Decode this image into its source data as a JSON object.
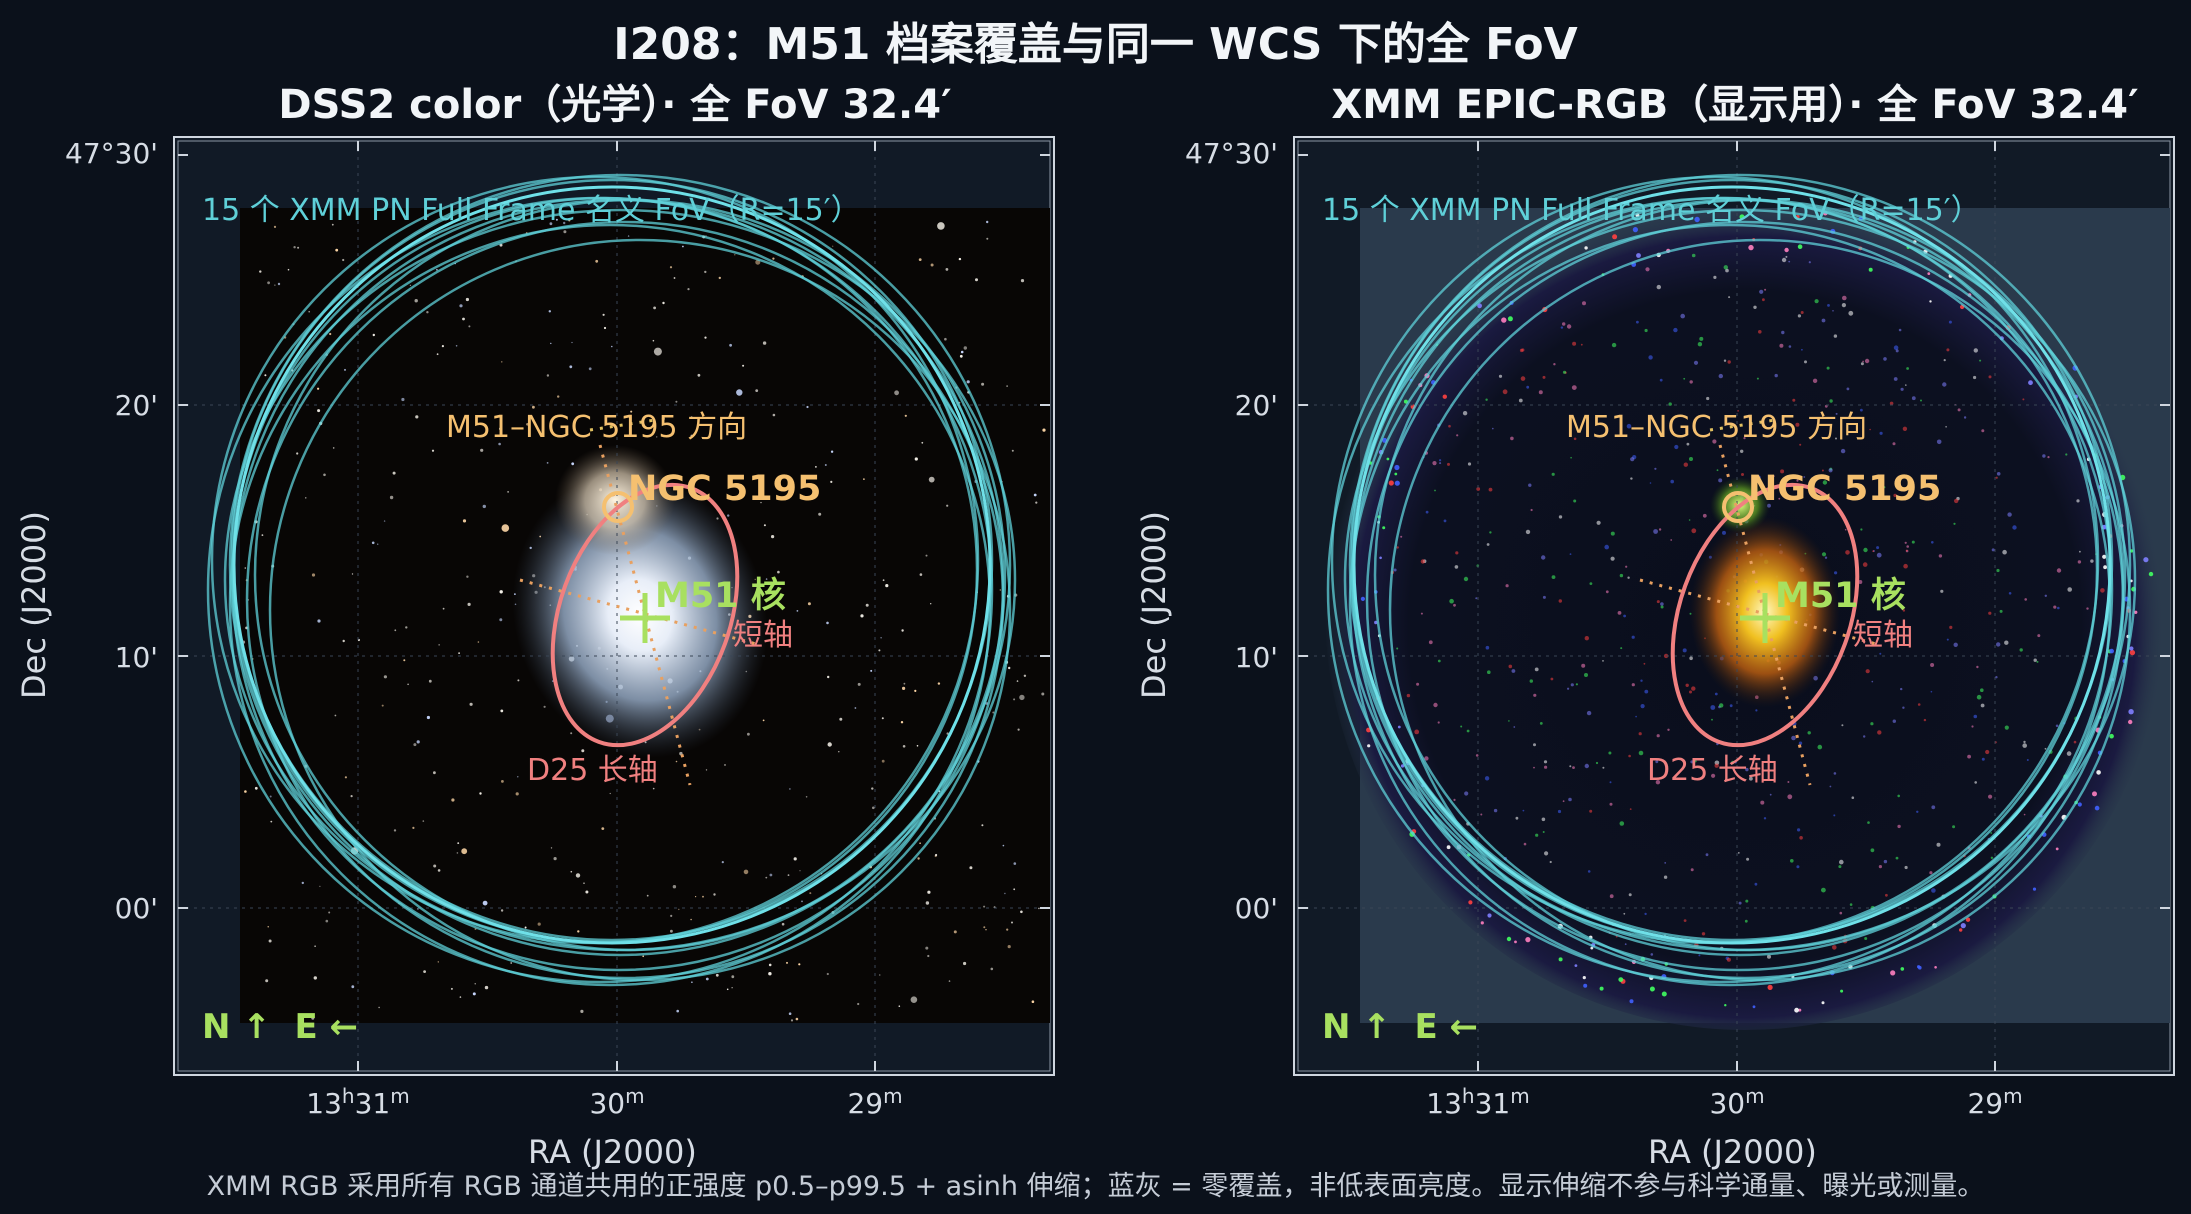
{
  "title": "I208：M51 档案覆盖与同一 WCS 下的全 FoV",
  "footer": "XMM RGB 采用所有 RGB 通道共用的正强度 p0.5–p99.5 + asinh 伸缩；蓝灰 = 零覆盖，非低表面亮度。显示伸缩不参与科学通量、曝光或测量。",
  "axes": {
    "ylabel": "Dec (J2000)",
    "xlabel": "RA (J2000)",
    "yticks": [
      "47°30'",
      "20'",
      "10'",
      "00'"
    ],
    "xticks": [
      {
        "main": "13",
        "sup1": "h",
        "mid": "31",
        "sup2": "m"
      },
      {
        "main": "30",
        "sup1": "",
        "mid": "",
        "sup2": "m"
      },
      {
        "main": "29",
        "sup1": "",
        "mid": "",
        "sup2": "m"
      }
    ]
  },
  "panels": [
    {
      "id": "dss2",
      "subtitle": "DSS2 color（光学）· 全 FoV 32.4′",
      "fov_label": "15 个 XMM PN Full Frame 名义 FoV（R=15′）",
      "direction_label": "M51–NGC 5195 方向",
      "ngc_label": "NGC 5195",
      "core_label": "M51 核",
      "minor_label": "短轴",
      "major_label": "D25 长轴",
      "compass": "N ↑  E ←"
    },
    {
      "id": "xmm",
      "subtitle": "XMM EPIC-RGB（显示用）· 全 FoV 32.4′",
      "fov_label": "15 个 XMM PN Full Frame 名义 FoV（R=15′）",
      "direction_label": "M51–NGC 5195 方向",
      "ngc_label": "NGC 5195",
      "core_label": "M51 核",
      "minor_label": "短轴",
      "major_label": "D25 长轴",
      "compass": "N ↑  E ←"
    }
  ],
  "colors": {
    "fov_circle": "#5fd0d8",
    "d25_ellipse": "#f08080",
    "ngc_marker": "#f5c070",
    "core_marker": "#a8e060",
    "background": "#0b111b",
    "zero_coverage": "#2a3a4c"
  }
}
